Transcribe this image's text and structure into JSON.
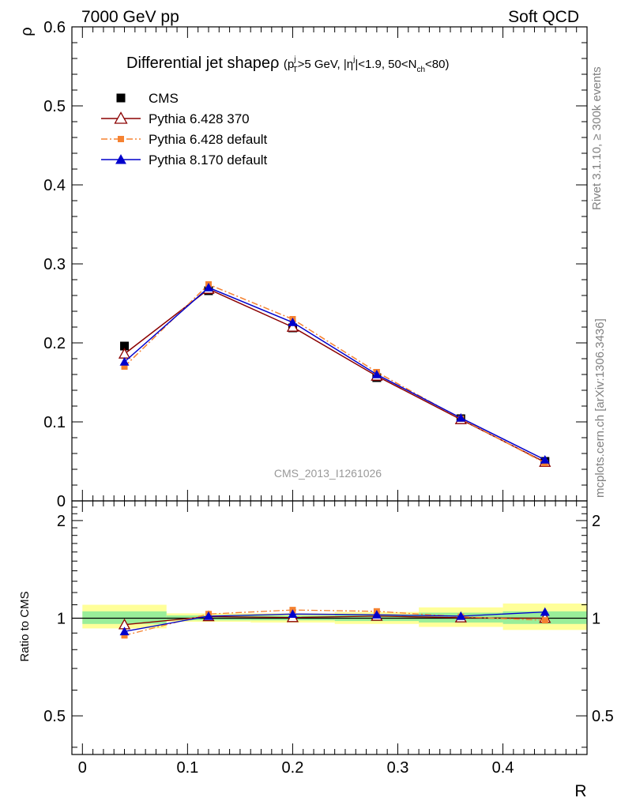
{
  "header": {
    "left": "7000 GeV pp",
    "right": "Soft QCD"
  },
  "side": {
    "rivet": "Rivet 3.1.10, ≥ 300k events",
    "mcplots": "mcplots.cern.ch [arXiv:1306.3436]"
  },
  "chart_data": [
    {
      "type": "scatter",
      "title": "Differential jet shapeρ (p_T^j>5 GeV, |η^j|<1.9, 50<N_ch<80)",
      "title_parts": {
        "main": "Differential jet shapeρ ",
        "p": "(p",
        "sub_T": "T",
        "sup_j1": "j",
        "mid1": ">5 GeV, |η",
        "sup_j2": "j",
        "mid2": "|<1.9, 50<N",
        "sub_ch": "ch",
        "end": "<80)"
      },
      "ylabel": "ρ",
      "ylim": [
        0,
        0.6
      ],
      "yticks": [
        "0",
        "0.1",
        "0.2",
        "0.3",
        "0.4",
        "0.5",
        "0.6"
      ],
      "xlim": [
        -0.01,
        0.48
      ],
      "watermark": "CMS_2013_I1261026",
      "legend_position": "top-left",
      "x": [
        0.04,
        0.12,
        0.2,
        0.28,
        0.36,
        0.44
      ],
      "series": [
        {
          "name": "CMS",
          "color": "#000000",
          "marker": "square",
          "values": [
            0.196,
            0.266,
            0.219,
            0.156,
            0.104,
            0.05
          ]
        },
        {
          "name": "Pythia 6.428 370",
          "color": "#8b0000",
          "marker": "open-triangle",
          "line": "solid",
          "values": [
            0.186,
            0.268,
            0.22,
            0.158,
            0.103,
            0.049
          ]
        },
        {
          "name": "Pythia 6.428 default",
          "color": "#f58231",
          "marker": "small-square",
          "line": "dashdot",
          "values": [
            0.17,
            0.274,
            0.23,
            0.163,
            0.104,
            0.048
          ]
        },
        {
          "name": "Pythia 8.170 default",
          "color": "#0000cc",
          "marker": "filled-triangle",
          "line": "solid",
          "values": [
            0.176,
            0.27,
            0.226,
            0.16,
            0.105,
            0.052
          ]
        }
      ]
    },
    {
      "type": "scatter",
      "ylabel": "Ratio to CMS",
      "xlabel": "R",
      "ylim": [
        0.38,
        2.3
      ],
      "yscale": "log",
      "yticks": [
        "0.5",
        "1",
        "2"
      ],
      "xticks": [
        "0",
        "0.1",
        "0.2",
        "0.3",
        "0.4"
      ],
      "xlim": [
        -0.01,
        0.48
      ],
      "bands": [
        {
          "x0": 0.0,
          "x1": 0.08,
          "green": [
            0.96,
            1.05
          ],
          "yellow": [
            0.93,
            1.1
          ]
        },
        {
          "x0": 0.08,
          "x1": 0.16,
          "green": [
            0.985,
            1.02
          ],
          "yellow": [
            0.975,
            1.035
          ]
        },
        {
          "x0": 0.16,
          "x1": 0.24,
          "green": [
            0.985,
            1.02
          ],
          "yellow": [
            0.97,
            1.035
          ]
        },
        {
          "x0": 0.24,
          "x1": 0.32,
          "green": [
            0.98,
            1.025
          ],
          "yellow": [
            0.96,
            1.045
          ]
        },
        {
          "x0": 0.32,
          "x1": 0.4,
          "green": [
            0.97,
            1.04
          ],
          "yellow": [
            0.94,
            1.08
          ]
        },
        {
          "x0": 0.4,
          "x1": 0.48,
          "green": [
            0.96,
            1.05
          ],
          "yellow": [
            0.92,
            1.11
          ]
        }
      ],
      "x": [
        0.04,
        0.12,
        0.2,
        0.28,
        0.36,
        0.44
      ],
      "series": [
        {
          "name": "Pythia 6.428 370",
          "color": "#8b0000",
          "marker": "open-triangle",
          "values": [
            0.955,
            1.012,
            1.005,
            1.015,
            1.003,
            1.0
          ]
        },
        {
          "name": "Pythia 6.428 default",
          "color": "#f58231",
          "marker": "small-square",
          "values": [
            0.885,
            1.03,
            1.06,
            1.05,
            1.01,
            0.985
          ]
        },
        {
          "name": "Pythia 8.170 default",
          "color": "#0000cc",
          "marker": "filled-triangle",
          "values": [
            0.91,
            1.015,
            1.03,
            1.025,
            1.015,
            1.045
          ]
        }
      ]
    }
  ]
}
